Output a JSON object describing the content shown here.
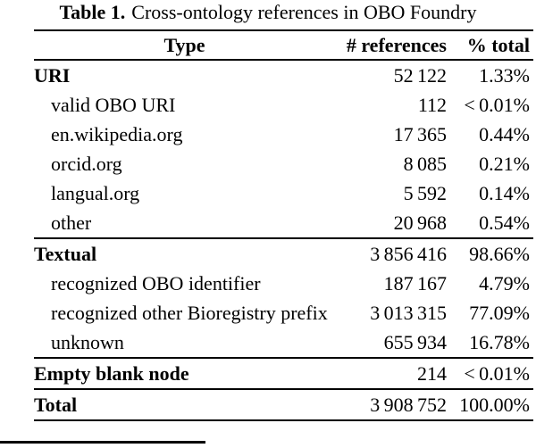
{
  "caption": {
    "label": "Table 1.",
    "text": "Cross-ontology references in OBO Foundry"
  },
  "colors": {
    "text": "#000000",
    "background": "#ffffff",
    "rule": "#000000"
  },
  "table": {
    "columns": [
      "Type",
      "# references",
      "% total"
    ],
    "sections": [
      {
        "name": "URI",
        "rows": [
          {
            "type": "URI",
            "references": "52 122",
            "percent": "1.33%"
          },
          {
            "type": "valid OBO URI",
            "references": "112",
            "percent": "< 0.01%"
          },
          {
            "type": "en.wikipedia.org",
            "references": "17 365",
            "percent": "0.44%"
          },
          {
            "type": "orcid.org",
            "references": "8 085",
            "percent": "0.21%"
          },
          {
            "type": "langual.org",
            "references": "5 592",
            "percent": "0.14%"
          },
          {
            "type": "other",
            "references": "20 968",
            "percent": "0.54%"
          }
        ]
      },
      {
        "name": "Textual",
        "rows": [
          {
            "type": "Textual",
            "references": "3 856 416",
            "percent": "98.66%"
          },
          {
            "type": "recognized OBO identifier",
            "references": "187 167",
            "percent": "4.79%"
          },
          {
            "type": "recognized other Bioregistry prefix",
            "references": "3 013 315",
            "percent": "77.09%"
          },
          {
            "type": "unknown",
            "references": "655 934",
            "percent": "16.78%"
          }
        ]
      },
      {
        "name": "Empty blank node",
        "rows": [
          {
            "type": "Empty blank node",
            "references": "214",
            "percent": "< 0.01%"
          }
        ]
      },
      {
        "name": "Total",
        "rows": [
          {
            "type": "Total",
            "references": "3 908 752",
            "percent": "100.00%"
          }
        ]
      }
    ]
  }
}
